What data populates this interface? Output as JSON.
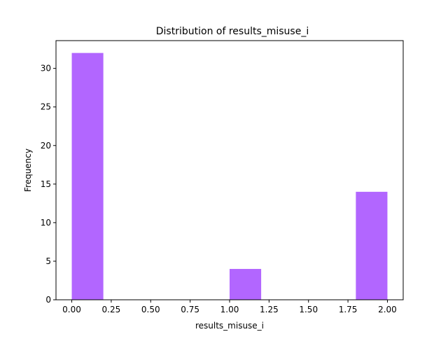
{
  "chart_data": {
    "type": "bar",
    "title": "Distribution of  results_misuse_i",
    "xlabel": "results_misuse_i",
    "ylabel": "Frequency",
    "bar_color": "#b266ff",
    "bins": [
      {
        "start": 0.0,
        "end": 0.2,
        "count": 32
      },
      {
        "start": 0.2,
        "end": 0.4,
        "count": 0
      },
      {
        "start": 0.4,
        "end": 0.6,
        "count": 0
      },
      {
        "start": 0.6,
        "end": 0.8,
        "count": 0
      },
      {
        "start": 0.8,
        "end": 1.0,
        "count": 0
      },
      {
        "start": 1.0,
        "end": 1.2,
        "count": 4
      },
      {
        "start": 1.2,
        "end": 1.4,
        "count": 0
      },
      {
        "start": 1.4,
        "end": 1.6,
        "count": 0
      },
      {
        "start": 1.6,
        "end": 1.8,
        "count": 0
      },
      {
        "start": 1.8,
        "end": 2.0,
        "count": 14
      }
    ],
    "xlim": [
      -0.1,
      2.1
    ],
    "ylim": [
      0,
      33.6
    ],
    "xticks": [
      0.0,
      0.25,
      0.5,
      0.75,
      1.0,
      1.25,
      1.5,
      1.75,
      2.0
    ],
    "xtick_labels": [
      "0.00",
      "0.25",
      "0.50",
      "0.75",
      "1.00",
      "1.25",
      "1.50",
      "1.75",
      "2.00"
    ],
    "yticks": [
      0,
      5,
      10,
      15,
      20,
      25,
      30
    ],
    "ytick_labels": [
      "0",
      "5",
      "10",
      "15",
      "20",
      "25",
      "30"
    ],
    "grid": false,
    "legend": false
  }
}
